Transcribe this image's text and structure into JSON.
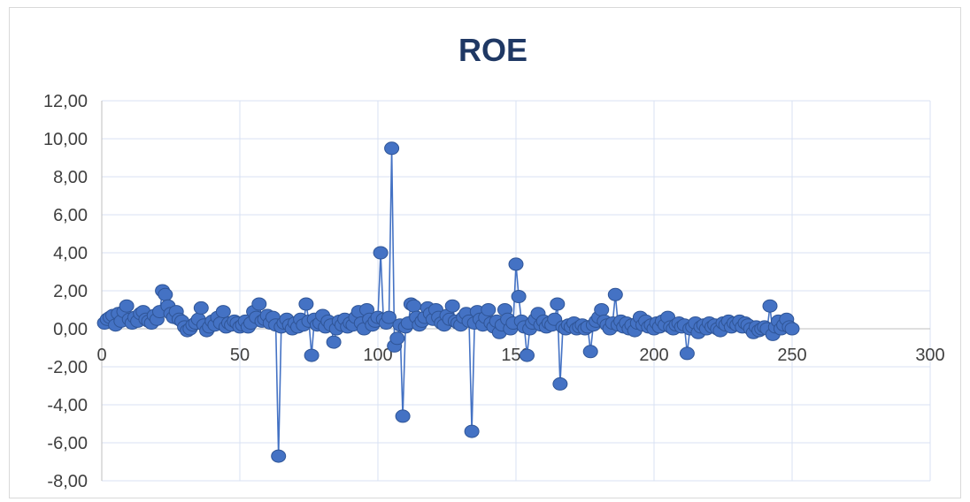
{
  "chart_data": {
    "type": "scatter",
    "title": "ROE",
    "xlabel": "",
    "ylabel": "",
    "xlim": [
      0,
      300
    ],
    "ylim": [
      -8,
      12
    ],
    "x_ticks": [
      0,
      50,
      100,
      150,
      200,
      250,
      300
    ],
    "x_tick_labels": [
      "0",
      "50",
      "100",
      "150",
      "200",
      "250",
      "300"
    ],
    "y_ticks": [
      12,
      10,
      8,
      6,
      4,
      2,
      0,
      -2,
      -4,
      -6,
      -8
    ],
    "y_tick_labels": [
      "12,00",
      "10,00",
      "8,00",
      "6,00",
      "4,00",
      "2,00",
      "0,00",
      "-2,00",
      "-4,00",
      "-6,00",
      "-8,00"
    ],
    "grid": true,
    "legend": "none",
    "series_color": "#4472c4",
    "marker_stroke": "#2f5597",
    "series": [
      {
        "values": [
          [
            1,
            0.3
          ],
          [
            2,
            0.5
          ],
          [
            3,
            0.6
          ],
          [
            4,
            0.7
          ],
          [
            5,
            0.2
          ],
          [
            6,
            0.8
          ],
          [
            7,
            0.4
          ],
          [
            8,
            0.9
          ],
          [
            9,
            1.2
          ],
          [
            10,
            0.5
          ],
          [
            11,
            0.3
          ],
          [
            12,
            0.6
          ],
          [
            13,
            0.4
          ],
          [
            14,
            0.8
          ],
          [
            15,
            0.9
          ],
          [
            16,
            0.5
          ],
          [
            17,
            0.4
          ],
          [
            18,
            0.3
          ],
          [
            19,
            0.7
          ],
          [
            20,
            0.5
          ],
          [
            21,
            0.9
          ],
          [
            22,
            2.0
          ],
          [
            23,
            1.8
          ],
          [
            24,
            1.2
          ],
          [
            25,
            0.8
          ],
          [
            26,
            0.6
          ],
          [
            27,
            0.9
          ],
          [
            28,
            0.5
          ],
          [
            29,
            0.4
          ],
          [
            30,
            0.1
          ],
          [
            31,
            -0.1
          ],
          [
            32,
            0.0
          ],
          [
            33,
            0.2
          ],
          [
            34,
            0.3
          ],
          [
            35,
            0.5
          ],
          [
            36,
            1.1
          ],
          [
            37,
            0.2
          ],
          [
            38,
            -0.1
          ],
          [
            39,
            0.1
          ],
          [
            40,
            0.4
          ],
          [
            41,
            0.2
          ],
          [
            42,
            0.6
          ],
          [
            43,
            0.3
          ],
          [
            44,
            0.9
          ],
          [
            45,
            0.1
          ],
          [
            46,
            0.3
          ],
          [
            47,
            0.2
          ],
          [
            48,
            0.4
          ],
          [
            49,
            0.3
          ],
          [
            50,
            0.1
          ],
          [
            51,
            0.2
          ],
          [
            52,
            0.4
          ],
          [
            53,
            0.1
          ],
          [
            54,
            0.3
          ],
          [
            55,
            0.9
          ],
          [
            56,
            0.6
          ],
          [
            57,
            1.3
          ],
          [
            58,
            0.4
          ],
          [
            59,
            0.5
          ],
          [
            60,
            0.7
          ],
          [
            61,
            0.3
          ],
          [
            62,
            0.6
          ],
          [
            63,
            0.2
          ],
          [
            64,
            -6.7
          ],
          [
            65,
            0.1
          ],
          [
            66,
            0.3
          ],
          [
            67,
            0.5
          ],
          [
            68,
            0.2
          ],
          [
            69,
            0.0
          ],
          [
            70,
            0.3
          ],
          [
            71,
            0.1
          ],
          [
            72,
            0.5
          ],
          [
            73,
            0.2
          ],
          [
            74,
            1.3
          ],
          [
            75,
            0.4
          ],
          [
            76,
            -1.4
          ],
          [
            77,
            0.5
          ],
          [
            78,
            0.2
          ],
          [
            79,
            0.3
          ],
          [
            80,
            0.7
          ],
          [
            81,
            0.1
          ],
          [
            82,
            0.4
          ],
          [
            83,
            0.2
          ],
          [
            84,
            -0.7
          ],
          [
            85,
            0.0
          ],
          [
            86,
            0.4
          ],
          [
            87,
            0.2
          ],
          [
            88,
            0.5
          ],
          [
            89,
            0.1
          ],
          [
            90,
            0.3
          ],
          [
            91,
            0.2
          ],
          [
            92,
            0.6
          ],
          [
            93,
            0.9
          ],
          [
            94,
            0.3
          ],
          [
            95,
            0.0
          ],
          [
            96,
            1.0
          ],
          [
            97,
            0.5
          ],
          [
            98,
            0.2
          ],
          [
            99,
            0.4
          ],
          [
            100,
            0.6
          ],
          [
            101,
            4.0
          ],
          [
            102,
            0.5
          ],
          [
            103,
            0.3
          ],
          [
            104,
            0.6
          ],
          [
            105,
            9.5
          ],
          [
            106,
            -0.9
          ],
          [
            107,
            -0.5
          ],
          [
            108,
            0.2
          ],
          [
            109,
            -4.6
          ],
          [
            110,
            0.1
          ],
          [
            111,
            0.3
          ],
          [
            112,
            1.3
          ],
          [
            113,
            1.2
          ],
          [
            114,
            0.6
          ],
          [
            115,
            0.2
          ],
          [
            116,
            0.4
          ],
          [
            117,
            0.6
          ],
          [
            118,
            1.1
          ],
          [
            119,
            0.8
          ],
          [
            120,
            0.5
          ],
          [
            121,
            1.0
          ],
          [
            122,
            0.6
          ],
          [
            123,
            0.3
          ],
          [
            124,
            0.2
          ],
          [
            125,
            0.7
          ],
          [
            126,
            0.5
          ],
          [
            127,
            1.2
          ],
          [
            128,
            0.4
          ],
          [
            129,
            0.3
          ],
          [
            130,
            0.2
          ],
          [
            131,
            0.6
          ],
          [
            132,
            0.8
          ],
          [
            133,
            0.4
          ],
          [
            134,
            -5.4
          ],
          [
            135,
            0.3
          ],
          [
            136,
            0.9
          ],
          [
            137,
            0.5
          ],
          [
            138,
            0.2
          ],
          [
            139,
            0.6
          ],
          [
            140,
            1.0
          ],
          [
            141,
            0.3
          ],
          [
            142,
            0.1
          ],
          [
            143,
            0.4
          ],
          [
            144,
            -0.2
          ],
          [
            145,
            0.2
          ],
          [
            146,
            1.0
          ],
          [
            147,
            0.5
          ],
          [
            148,
            0.0
          ],
          [
            149,
            0.3
          ],
          [
            150,
            3.4
          ],
          [
            151,
            1.7
          ],
          [
            152,
            0.4
          ],
          [
            153,
            0.1
          ],
          [
            154,
            -1.4
          ],
          [
            155,
            0.0
          ],
          [
            156,
            0.3
          ],
          [
            157,
            0.5
          ],
          [
            158,
            0.8
          ],
          [
            159,
            0.2
          ],
          [
            160,
            0.4
          ],
          [
            161,
            0.1
          ],
          [
            162,
            0.3
          ],
          [
            163,
            0.2
          ],
          [
            164,
            0.5
          ],
          [
            165,
            1.3
          ],
          [
            166,
            -2.9
          ],
          [
            167,
            0.1
          ],
          [
            168,
            0.0
          ],
          [
            169,
            0.2
          ],
          [
            170,
            0.1
          ],
          [
            171,
            0.3
          ],
          [
            172,
            0.0
          ],
          [
            173,
            0.1
          ],
          [
            174,
            0.2
          ],
          [
            175,
            0.0
          ],
          [
            176,
            0.1
          ],
          [
            177,
            -1.2
          ],
          [
            178,
            0.2
          ],
          [
            179,
            0.4
          ],
          [
            180,
            0.6
          ],
          [
            181,
            1.0
          ],
          [
            182,
            0.4
          ],
          [
            183,
            0.2
          ],
          [
            184,
            0.0
          ],
          [
            185,
            0.3
          ],
          [
            186,
            1.8
          ],
          [
            187,
            0.2
          ],
          [
            188,
            0.4
          ],
          [
            189,
            0.1
          ],
          [
            190,
            0.3
          ],
          [
            191,
            0.0
          ],
          [
            192,
            0.2
          ],
          [
            193,
            -0.1
          ],
          [
            194,
            0.3
          ],
          [
            195,
            0.6
          ],
          [
            196,
            0.2
          ],
          [
            197,
            0.4
          ],
          [
            198,
            0.1
          ],
          [
            199,
            0.2
          ],
          [
            200,
            0.0
          ],
          [
            201,
            0.3
          ],
          [
            202,
            0.1
          ],
          [
            203,
            0.4
          ],
          [
            204,
            0.2
          ],
          [
            205,
            0.6
          ],
          [
            206,
            0.1
          ],
          [
            207,
            0.0
          ],
          [
            208,
            0.2
          ],
          [
            209,
            0.3
          ],
          [
            210,
            0.1
          ],
          [
            211,
            0.2
          ],
          [
            212,
            -1.3
          ],
          [
            213,
            0.0
          ],
          [
            214,
            0.1
          ],
          [
            215,
            0.3
          ],
          [
            216,
            -0.2
          ],
          [
            217,
            0.1
          ],
          [
            218,
            0.2
          ],
          [
            219,
            0.0
          ],
          [
            220,
            0.3
          ],
          [
            221,
            0.1
          ],
          [
            222,
            0.2
          ],
          [
            223,
            0.0
          ],
          [
            224,
            -0.1
          ],
          [
            225,
            0.3
          ],
          [
            226,
            0.2
          ],
          [
            227,
            0.4
          ],
          [
            228,
            0.1
          ],
          [
            229,
            0.3
          ],
          [
            230,
            0.2
          ],
          [
            231,
            0.4
          ],
          [
            232,
            0.1
          ],
          [
            233,
            0.3
          ],
          [
            234,
            0.2
          ],
          [
            235,
            0.0
          ],
          [
            236,
            -0.2
          ],
          [
            237,
            0.1
          ],
          [
            238,
            -0.1
          ],
          [
            239,
            0.0
          ],
          [
            240,
            0.1
          ],
          [
            241,
            0.0
          ],
          [
            242,
            1.2
          ],
          [
            243,
            -0.3
          ],
          [
            244,
            0.1
          ],
          [
            245,
            0.4
          ],
          [
            246,
            0.0
          ],
          [
            247,
            0.2
          ],
          [
            248,
            0.5
          ],
          [
            249,
            0.1
          ],
          [
            250,
            0.0
          ]
        ]
      }
    ]
  }
}
